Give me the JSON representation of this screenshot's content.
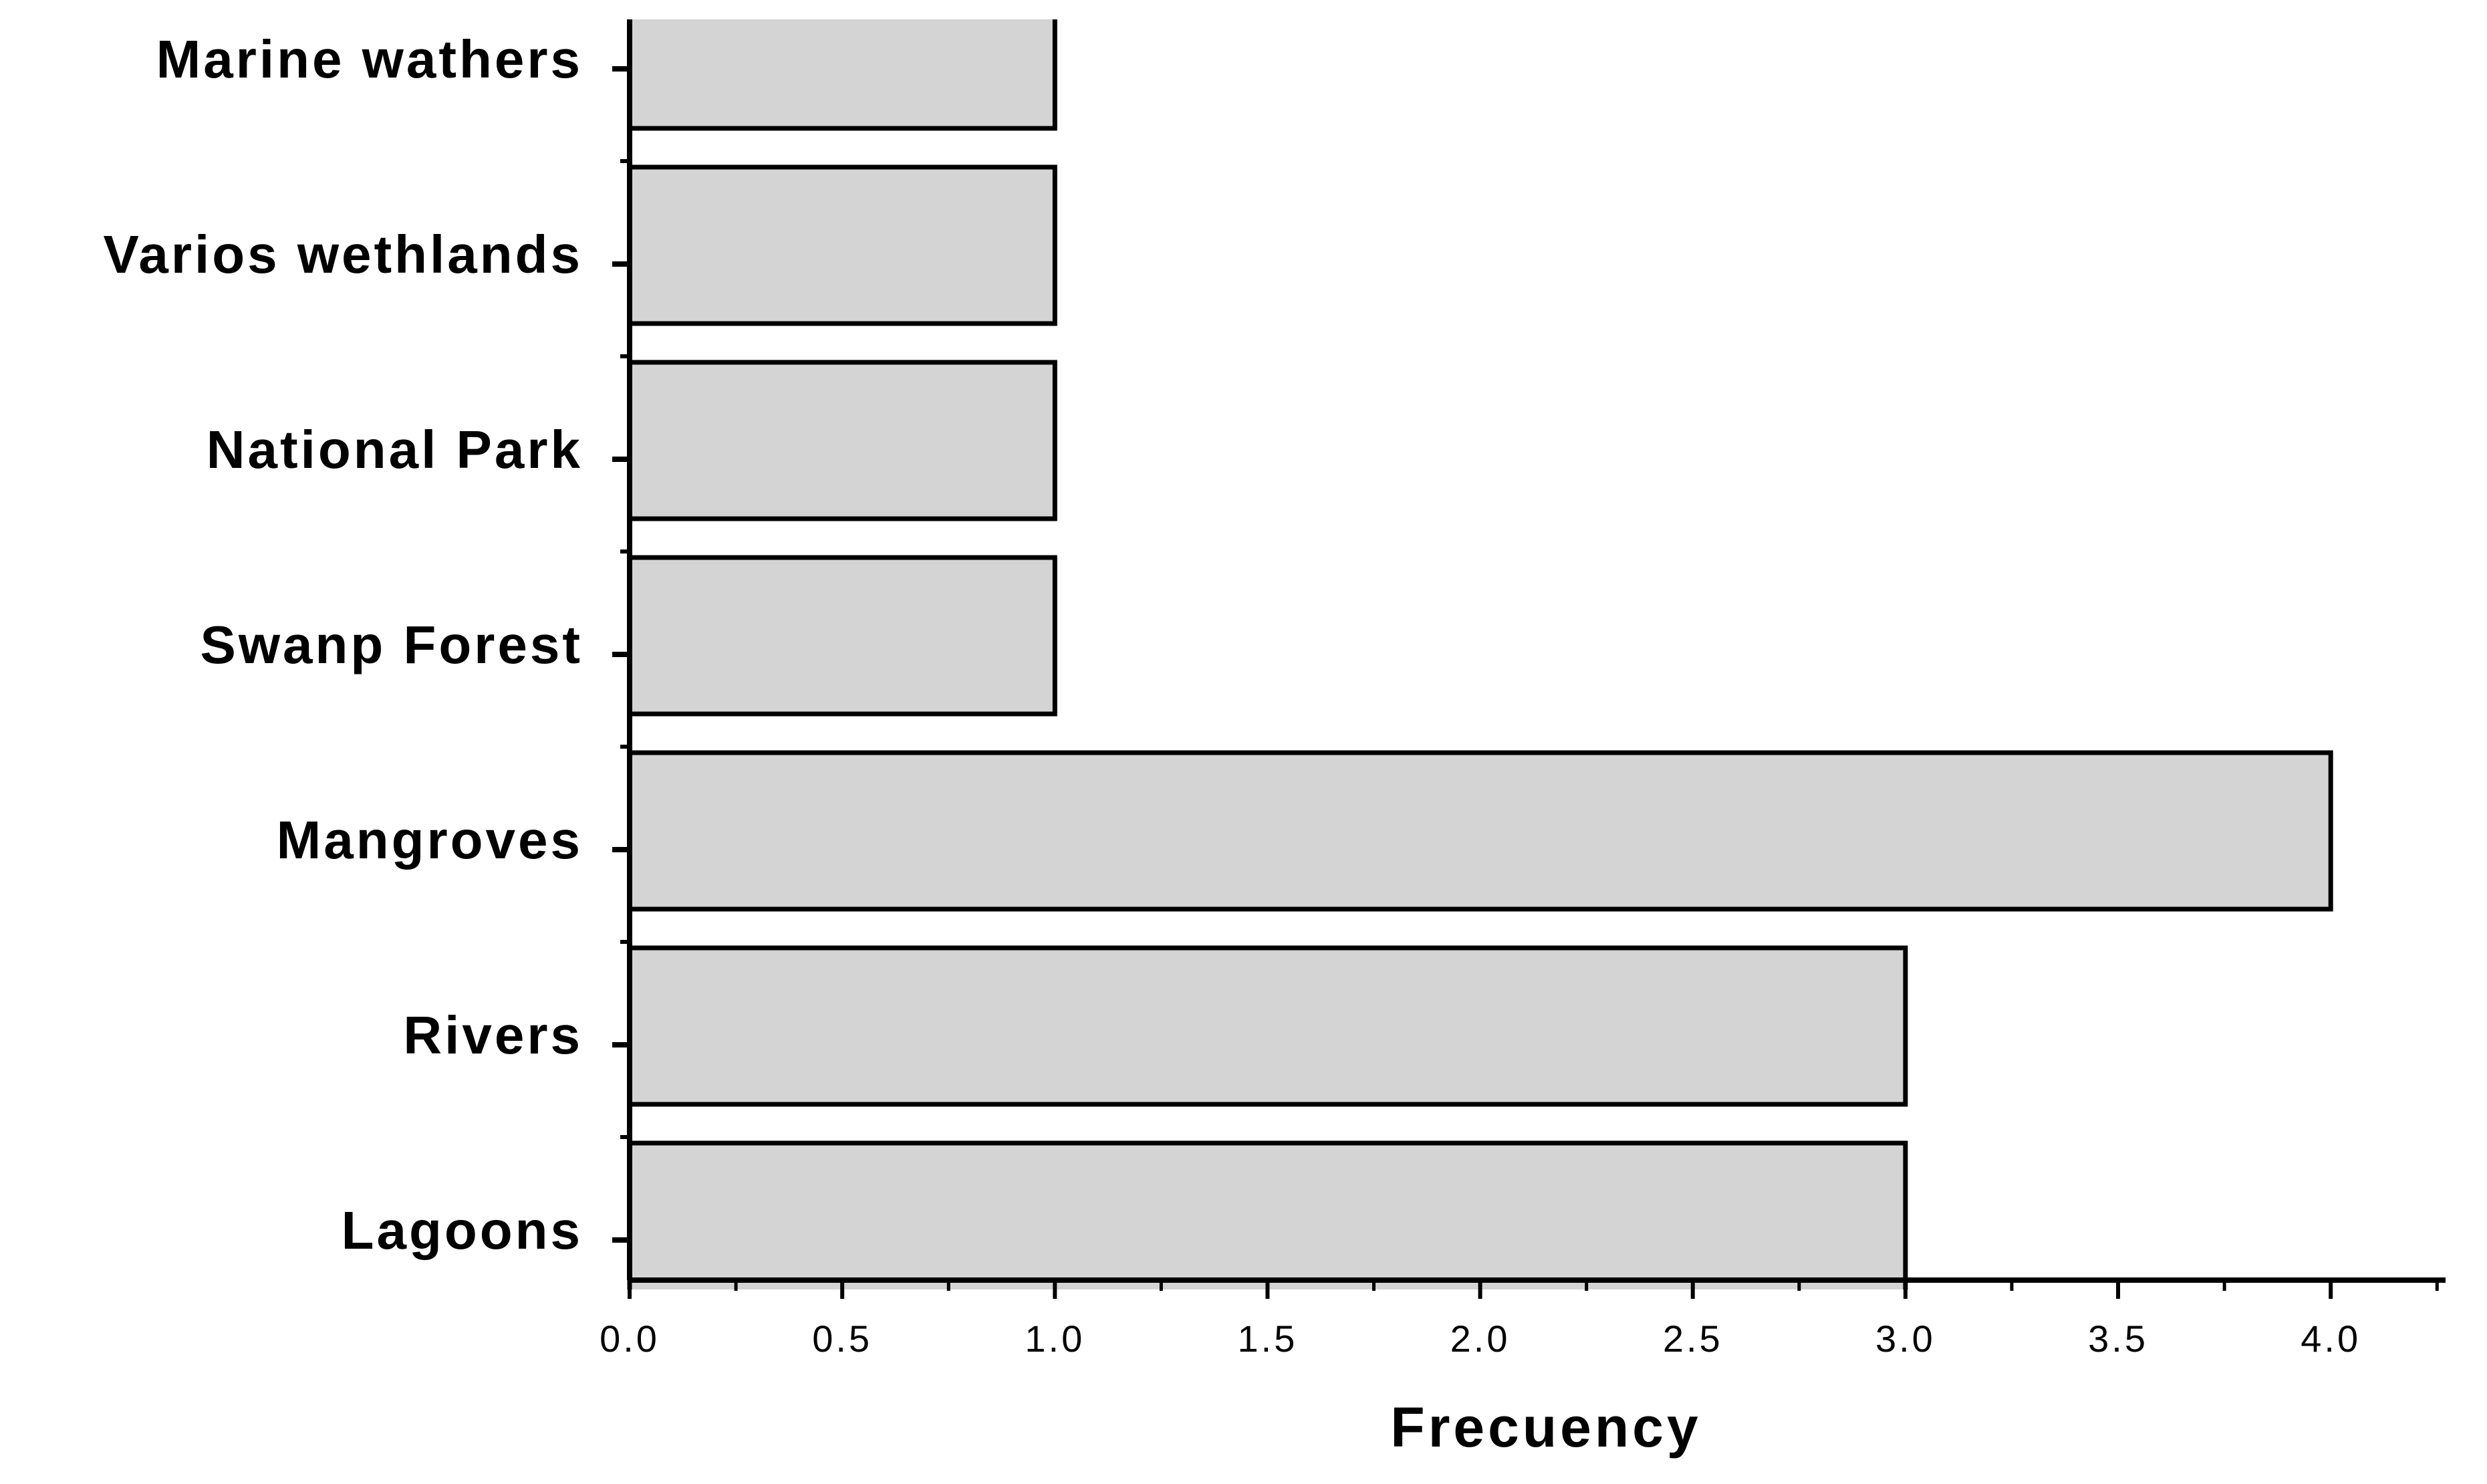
{
  "chart_data": {
    "type": "bar",
    "orientation": "horizontal",
    "categories": [
      "Lagoons",
      "Rivers",
      "Mangroves",
      "Swanp Forest",
      "National Park",
      "Varios wethlands",
      "Marine wathers"
    ],
    "values": [
      3,
      3,
      4,
      1,
      1,
      1,
      1
    ],
    "color": "#d4d4d4",
    "xlabel": "Frecuency",
    "xlim": [
      0,
      4.27
    ],
    "xticks": [
      {
        "value": 0,
        "label": "0.0"
      },
      {
        "value": 0.5,
        "label": "0.5"
      },
      {
        "value": 1,
        "label": "1.0"
      },
      {
        "value": 1.5,
        "label": "1.5"
      },
      {
        "value": 2,
        "label": "2.0"
      },
      {
        "value": 2.5,
        "label": "2.5"
      },
      {
        "value": 3,
        "label": "3.0"
      },
      {
        "value": 3.5,
        "label": "3.5"
      },
      {
        "value": 4,
        "label": "4.0"
      }
    ],
    "grid": false
  }
}
